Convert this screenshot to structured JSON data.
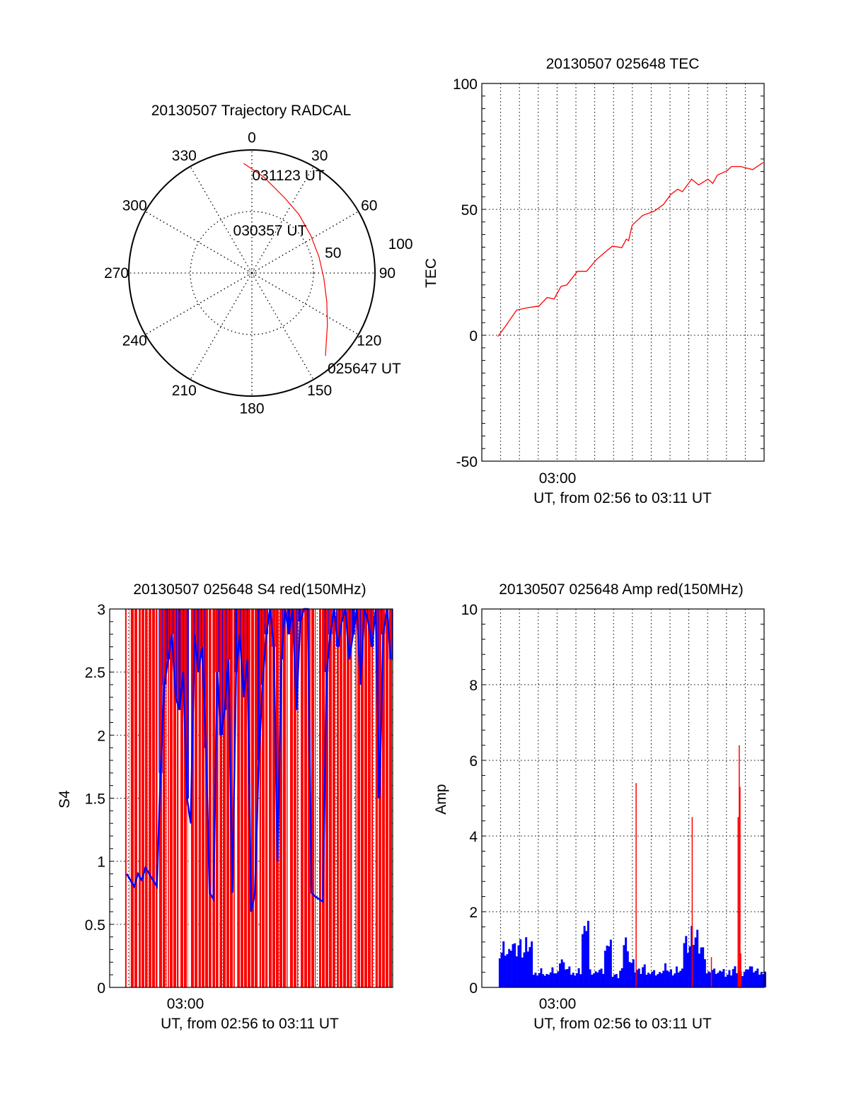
{
  "colors": {
    "axis": "#000000",
    "red": "#ff0000",
    "blue": "#0000ff"
  },
  "chart_data": [
    {
      "type": "polar",
      "title": "20130507 Trajectory RADCAL",
      "azimuth_labels": [
        "0",
        "30",
        "60",
        "90",
        "120",
        "150",
        "180",
        "210",
        "240",
        "270",
        "300",
        "330"
      ],
      "radial_labels": [
        "50",
        "100"
      ],
      "r_max": 100,
      "rings": [
        50,
        100
      ],
      "trajectory": {
        "color": "#ff0000",
        "az": [
          138.4,
          124.7,
          111,
          94.1,
          76.6,
          57.7,
          38.9,
          23.8,
          7.0,
          355.7
        ],
        "r": [
          90,
          74.6,
          65.2,
          58.6,
          56.1,
          56.7,
          61,
          66.5,
          78.7,
          89.3
        ]
      },
      "time_labels": [
        {
          "text": "025647 UT",
          "az": 138.4,
          "r": 90
        },
        {
          "text": "030357 UT",
          "az": 66,
          "r": 55
        },
        {
          "text": "031123 UT",
          "az": 355.7,
          "r": 89.3
        }
      ]
    },
    {
      "type": "line",
      "title": "20130507 025648 TEC",
      "xlabel": "UT, from 02:56 to 03:11 UT",
      "ylabel": "TEC",
      "x_units": "minutes since 02:56",
      "xlim": [
        0,
        15
      ],
      "ylim": [
        -50,
        100
      ],
      "yticks": [
        "-50",
        "0",
        "50",
        "100"
      ],
      "xtick_label": "03:00",
      "series": [
        {
          "name": "TEC",
          "color": "#ff0000",
          "x": [
            0.85,
            1.23,
            1.85,
            2.47,
            3.04,
            3.47,
            3.84,
            4.21,
            4.52,
            5.08,
            5.57,
            6.07,
            6.5,
            6.94,
            7.44,
            7.68,
            7.8,
            7.99,
            8.55,
            9.17,
            9.66,
            10.04,
            10.41,
            10.66,
            11.15,
            11.52,
            12.02,
            12.27,
            12.52,
            13.02,
            13.27,
            13.76,
            14.39,
            14.95
          ],
          "y": [
            -0.5,
            3.3,
            10,
            11,
            11.6,
            15,
            14.4,
            19.4,
            20,
            25.4,
            25.4,
            29.9,
            32.7,
            35.4,
            34.8,
            38.2,
            37.6,
            43.7,
            47.6,
            49.3,
            52,
            55.9,
            58,
            57,
            62,
            59.7,
            62,
            60.3,
            63.6,
            65.3,
            67,
            67,
            65.8,
            68.6
          ]
        }
      ]
    },
    {
      "type": "bar",
      "title": "20130507 025648 S4 red(150MHz)",
      "xlabel": "UT, from 02:56 to 03:11 UT",
      "ylabel": "S4",
      "x_units": "minutes since 02:56",
      "xlim": [
        0,
        15
      ],
      "ylim": [
        0,
        3
      ],
      "yticks": [
        "0",
        "0.5",
        "1",
        "1.5",
        "2",
        "2.5",
        "3"
      ],
      "xtick_label": "03:00",
      "blue_series": {
        "start": 0.9,
        "step": 0.2,
        "color": "#0000ff",
        "values": [
          0.9,
          0.85,
          0.8,
          0.9,
          0.85,
          0.95,
          0.9,
          0.85,
          0.8,
          1.7,
          2.4,
          2.6,
          2.8,
          2.3,
          2.2,
          2.5,
          1.5,
          1.3,
          2.8,
          2.5,
          2.7,
          1.9,
          0.75,
          0.7,
          2.5,
          2.0,
          2.2,
          2.6,
          0.75,
          2.5,
          2.8,
          2.3,
          2.6,
          0.6,
          0.75,
          1.8,
          2.4,
          2.8,
          3.0,
          2.7,
          1.0,
          2.6,
          3.0,
          2.8,
          3.0,
          2.2,
          2.9,
          3.0,
          3.0,
          0.75,
          0.72,
          0.7,
          0.68,
          2.5,
          2.8,
          3.0,
          2.7,
          2.9,
          3.0,
          2.6,
          2.8,
          3.0,
          2.4,
          3.0,
          2.9,
          2.7,
          3.0,
          1.5,
          2.8,
          3.0,
          2.6
        ]
      },
      "red_intervals": [
        [
          0.82,
          0.87
        ],
        [
          1.07,
          1.48
        ],
        [
          1.54,
          2.01
        ],
        [
          2.06,
          2.53
        ],
        [
          2.62,
          3.03
        ],
        [
          3.09,
          3.65
        ],
        [
          3.71,
          4.15
        ],
        [
          4.27,
          4.65
        ],
        [
          4.71,
          5.39
        ],
        [
          5.45,
          5.76
        ],
        [
          5.83,
          6.63
        ],
        [
          6.76,
          7.88
        ],
        [
          7.94,
          8.37
        ],
        [
          8.43,
          9.43
        ],
        [
          9.55,
          9.99
        ],
        [
          10.11,
          10.92
        ],
        [
          11.1,
          11.98
        ],
        [
          12.04,
          12.84
        ],
        [
          13.03,
          13.96
        ],
        [
          14.09,
          14.96
        ]
      ]
    },
    {
      "type": "bar",
      "title": "20130507 025648 Amp red(150MHz)",
      "xlabel": "UT, from 02:56 to 03:11 UT",
      "ylabel": "Amp",
      "x_units": "minutes since 02:56",
      "xlim": [
        0,
        15
      ],
      "ylim": [
        0,
        10
      ],
      "yticks": [
        "0",
        "2",
        "4",
        "6",
        "8",
        "10"
      ],
      "xtick_label": "03:00",
      "blue_series": {
        "start": 0.9,
        "step": 0.2,
        "color": "#0000ff",
        "values": [
          1.1,
          1.2,
          1.0,
          1.3,
          1.1,
          1.2,
          1.0,
          1.2,
          1.1,
          0.4,
          0.45,
          0.5,
          0.35,
          0.45,
          0.5,
          0.4,
          0.8,
          0.6,
          0.5,
          0.4,
          0.45,
          0.5,
          1.6,
          2.0,
          0.45,
          0.4,
          0.5,
          0.45,
          1.0,
          1.3,
          0.4,
          0.35,
          0.5,
          1.5,
          0.9,
          0.7,
          0.5,
          0.45,
          0.55,
          0.4,
          0.5,
          0.45,
          0.4,
          0.5,
          0.6,
          0.45,
          0.4,
          0.5,
          0.45,
          1.4,
          1.3,
          1.6,
          1.5,
          1.2,
          1.0,
          0.4,
          0.5,
          0.45,
          0.4,
          0.5,
          0.4,
          0.45,
          0.55,
          0.5,
          0.4,
          0.45,
          0.6,
          0.5,
          0.45,
          0.4,
          0.5
        ]
      },
      "red_spikes": {
        "x": [
          8.2,
          11.18,
          12.2,
          13.62,
          13.68,
          13.72,
          13.76
        ],
        "y": [
          5.4,
          4.5,
          0.8,
          4.5,
          6.4,
          5.3,
          0.9
        ],
        "color": "#ff0000"
      }
    }
  ]
}
